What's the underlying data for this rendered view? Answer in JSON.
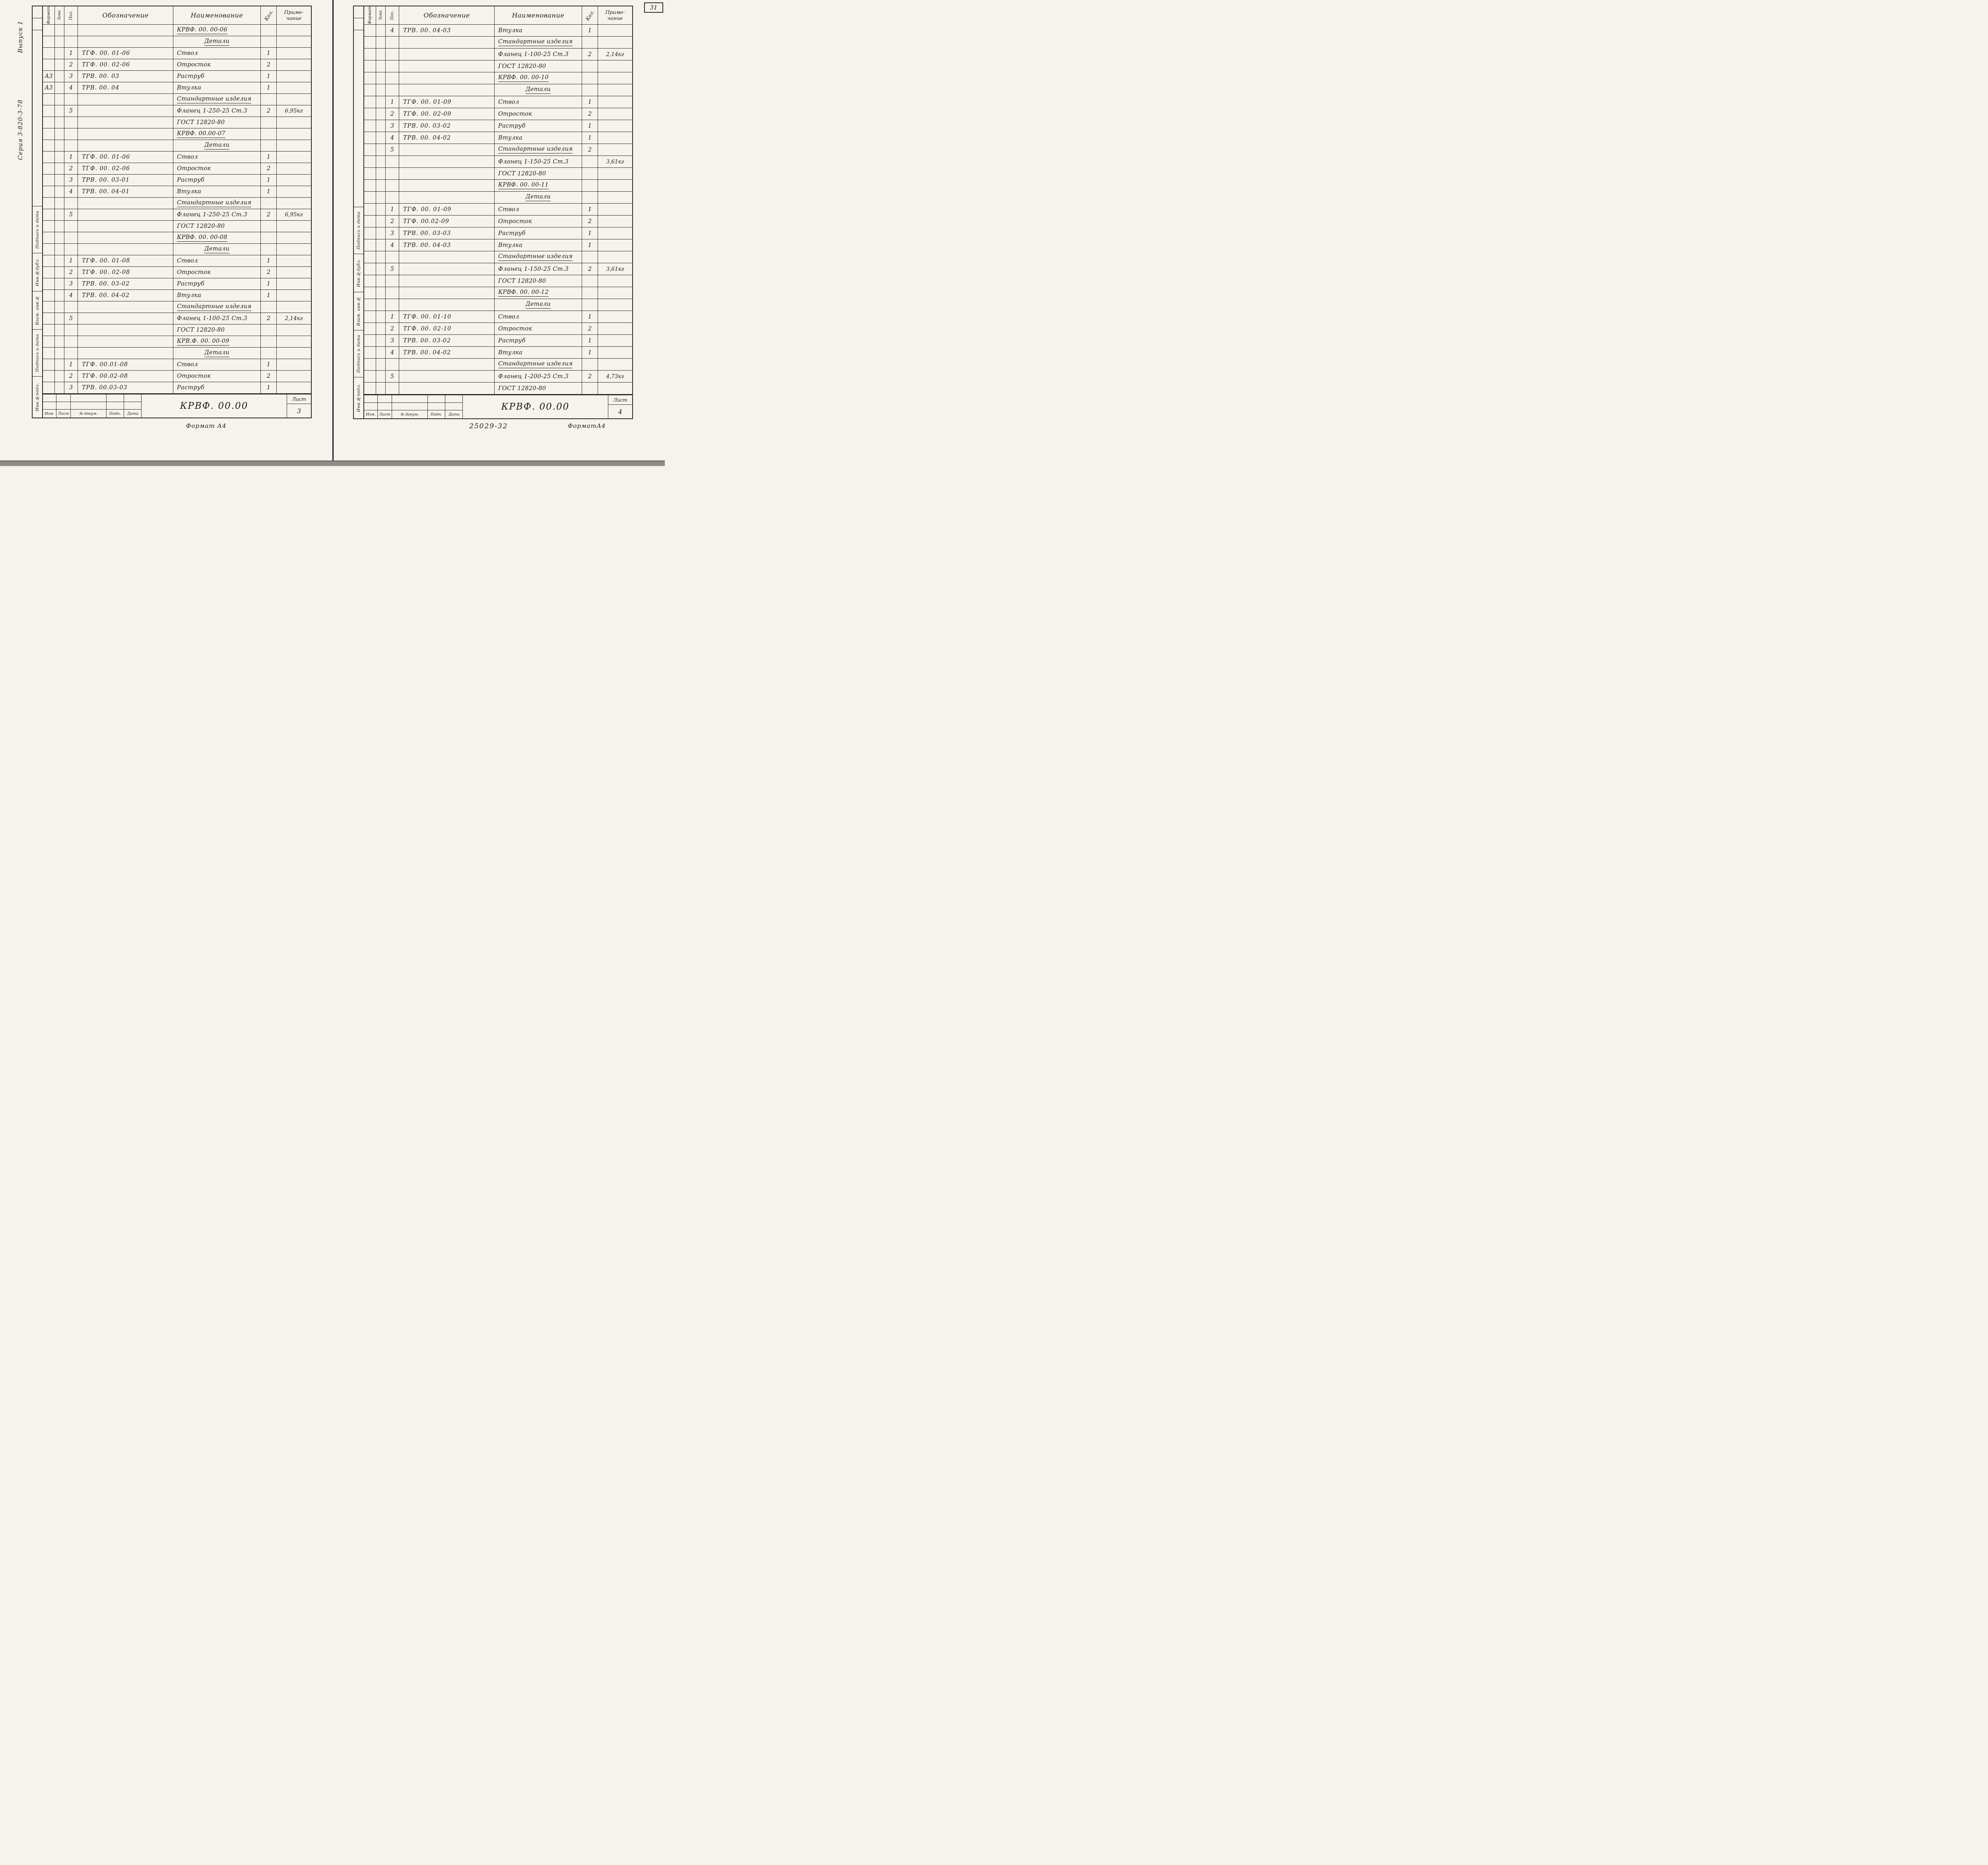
{
  "scan": {
    "page_corner_number": "31"
  },
  "header_labels": {
    "format": "Формат",
    "zone": "Зона",
    "pos": "Поз.",
    "designation": "Обозначение",
    "name": "Наименование",
    "qty": "Кол.",
    "note_line1": "Приме-",
    "note_line2": "чание"
  },
  "stamp_labels": [
    "Подпись и дата",
    "Инв.№дубл.",
    "Взам. инв.№",
    "Подпись и дата",
    "Инв.№подл."
  ],
  "left_page": {
    "margin_notes": {
      "top": "Выпуск 1",
      "middle": "Серия 3-820-3-78"
    },
    "rows": [
      [
        "",
        "",
        "",
        "КРВФ. 00. 00-06",
        "",
        "",
        "u"
      ],
      [
        "",
        "",
        "",
        "Детали",
        "",
        "",
        "uc"
      ],
      [
        "",
        "1",
        "ТГФ. 00. 01-06",
        "Ствол",
        "1",
        "",
        ""
      ],
      [
        "",
        "2",
        "ТГФ. 00. 02-06",
        "Отросток",
        "2",
        "",
        ""
      ],
      [
        "А3",
        "3",
        "ТРВ. 00. 03",
        "Раструб",
        "1",
        "",
        ""
      ],
      [
        "А3",
        "4",
        "ТРВ. 00. 04",
        "Втулка",
        "1",
        "",
        ""
      ],
      [
        "",
        "",
        "",
        "Стандартные изделия",
        "",
        "",
        "u"
      ],
      [
        "",
        "5",
        "",
        "Фланец 1-250-25 Ст.3",
        "2",
        "6,95кг",
        ""
      ],
      [
        "",
        "",
        "",
        "ГОСТ 12820-80",
        "",
        "",
        ""
      ],
      [
        "",
        "",
        "",
        "КРВФ. 00.00-07",
        "",
        "",
        "u"
      ],
      [
        "",
        "",
        "",
        "Детали",
        "",
        "",
        "uc"
      ],
      [
        "",
        "1",
        "ТГФ. 00. 01-06",
        "Ствол",
        "1",
        "",
        ""
      ],
      [
        "",
        "2",
        "ТГФ. 00. 02-06",
        "Отросток",
        "2",
        "",
        ""
      ],
      [
        "",
        "3",
        "ТРВ. 00. 03-01",
        "Раструб",
        "1",
        "",
        ""
      ],
      [
        "",
        "4",
        "ТРВ. 00. 04-01",
        "Втулка",
        "1",
        "",
        ""
      ],
      [
        "",
        "",
        "",
        "Стандартные изделия",
        "",
        "",
        "u"
      ],
      [
        "",
        "5",
        "",
        "Фланец 1-250-25 Ст.3",
        "2",
        "6,95кг",
        ""
      ],
      [
        "",
        "",
        "",
        "ГОСТ 12820-80",
        "",
        "",
        ""
      ],
      [
        "",
        "",
        "",
        "КРВФ. 00. 00-08",
        "",
        "",
        "u"
      ],
      [
        "",
        "",
        "",
        "Детали",
        "",
        "",
        "uc"
      ],
      [
        "",
        "1",
        "ТГФ. 00. 01-08",
        "Ствол",
        "1",
        "",
        ""
      ],
      [
        "",
        "2",
        "ТГФ. 00. 02-08",
        "Отросток",
        "2",
        "",
        ""
      ],
      [
        "",
        "3",
        "ТРВ. 00. 03-02",
        "Раструб",
        "1",
        "",
        ""
      ],
      [
        "",
        "4",
        "ТРВ. 00. 04-02",
        "Втулка",
        "1",
        "",
        ""
      ],
      [
        "",
        "",
        "",
        "Стандартные изделия",
        "",
        "",
        "u"
      ],
      [
        "",
        "5",
        "",
        "Фланец 1-100-25 Ст.3",
        "2",
        "2,14кг",
        ""
      ],
      [
        "",
        "",
        "",
        "ГОСТ 12820-80",
        "",
        "",
        ""
      ],
      [
        "",
        "",
        "",
        "КРВ.Ф. 00. 00-09",
        "",
        "",
        "u"
      ],
      [
        "",
        "",
        "",
        "Детали",
        "",
        "",
        "uc"
      ],
      [
        "",
        "1",
        "ТГФ. 00.01-08",
        "Ствол",
        "1",
        "",
        ""
      ],
      [
        "",
        "2",
        "ТГФ. 00.02-08",
        "Отросток",
        "2",
        "",
        ""
      ],
      [
        "",
        "3",
        "ТРВ. 00.03-03",
        "Раструб",
        "1",
        "",
        ""
      ]
    ],
    "title_block": {
      "doc_number": "КРВФ. 00.00",
      "sheet_label": "Лист",
      "sheet_number": "3",
      "cols": [
        "Изм.",
        "Лист",
        "№ докум.",
        "Подп.",
        "Дата"
      ],
      "format_note": "Формат А4"
    }
  },
  "right_page": {
    "rows": [
      [
        "",
        "4",
        "ТРВ. 00. 04-03",
        "Втулка",
        "1",
        "",
        ""
      ],
      [
        "",
        "",
        "",
        "Стандартные изделия",
        "",
        "",
        "u"
      ],
      [
        "",
        "",
        "",
        "Фланец 1-100-25 Ст.3",
        "2",
        "2,14кг",
        ""
      ],
      [
        "",
        "",
        "",
        "ГОСТ 12820-80",
        "",
        "",
        ""
      ],
      [
        "",
        "",
        "",
        "КРВФ. 00. 00-10",
        "",
        "",
        "u"
      ],
      [
        "",
        "",
        "",
        "Детали",
        "",
        "",
        "uc"
      ],
      [
        "",
        "1",
        "ТГФ. 00. 01-09",
        "Ствол",
        "1",
        "",
        ""
      ],
      [
        "",
        "2",
        "ТГФ. 00. 02-09",
        "Отросток",
        "2",
        "",
        ""
      ],
      [
        "",
        "3",
        "ТРВ. 00. 03-02",
        "Раструб",
        "1",
        "",
        ""
      ],
      [
        "",
        "4",
        "ТРВ. 00. 04-02",
        "Втулка",
        "1",
        "",
        ""
      ],
      [
        "",
        "5",
        "",
        "Стандартные изделия",
        "2",
        "",
        "u"
      ],
      [
        "",
        "",
        "",
        "Фланец 1-150-25 Ст.3",
        "",
        "3,61кг",
        ""
      ],
      [
        "",
        "",
        "",
        "ГОСТ 12820-80",
        "",
        "",
        ""
      ],
      [
        "",
        "",
        "",
        "КРВФ. 00. 00-11",
        "",
        "",
        "u"
      ],
      [
        "",
        "",
        "",
        "Детали",
        "",
        "",
        "uc"
      ],
      [
        "",
        "1",
        "ТГФ. 00. 01-09",
        "Ствол",
        "1",
        "",
        ""
      ],
      [
        "",
        "2",
        "ТГФ. 00.02-09",
        "Отросток",
        "2",
        "",
        ""
      ],
      [
        "",
        "3",
        "ТРВ. 00. 03-03",
        "Раструб",
        "1",
        "",
        ""
      ],
      [
        "",
        "4",
        "ТРВ. 00. 04-03",
        "Втулка",
        "1",
        "",
        ""
      ],
      [
        "",
        "",
        "",
        "Стандартные изделия",
        "",
        "",
        "u"
      ],
      [
        "",
        "5",
        "",
        "Фланец 1-150-25 Ст.3",
        "2",
        "3,61кг",
        ""
      ],
      [
        "",
        "",
        "",
        "ГОСТ 12820-80",
        "",
        "",
        ""
      ],
      [
        "",
        "",
        "",
        "КРВФ. 00. 00-12",
        "",
        "",
        "u"
      ],
      [
        "",
        "",
        "",
        "Детали",
        "",
        "",
        "uc"
      ],
      [
        "",
        "1",
        "ТГФ. 00. 01-10",
        "Ствол",
        "1",
        "",
        ""
      ],
      [
        "",
        "2",
        "ТГФ. 00. 02-10",
        "Отросток",
        "2",
        "",
        ""
      ],
      [
        "",
        "3",
        "ТРВ. 00. 03-02",
        "Раструб",
        "1",
        "",
        ""
      ],
      [
        "",
        "4",
        "ТРВ. 00. 04-02",
        "Втулка",
        "1",
        "",
        ""
      ],
      [
        "",
        "",
        "",
        "Стандартные изделия",
        "",
        "",
        "u"
      ],
      [
        "",
        "5",
        "",
        "Фланец 1-200-25 Ст.3",
        "2",
        "4,73кг",
        ""
      ],
      [
        "",
        "",
        "",
        "ГОСТ 12820-80",
        "",
        "",
        ""
      ]
    ],
    "title_block": {
      "doc_number": "КРВФ. 00.00",
      "sheet_label": "Лист",
      "sheet_number": "4",
      "cols": [
        "Изм.",
        "Лист",
        "№ докум.",
        "Подп.",
        "Дата"
      ],
      "format_note": "ФорматА4",
      "archive_number": "25029-32"
    }
  }
}
